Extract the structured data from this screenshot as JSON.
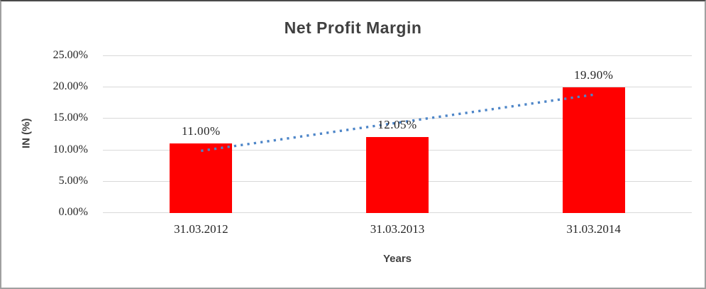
{
  "chart_data": {
    "type": "bar",
    "title": "Net Profit Margin",
    "categories": [
      "31.03.2012",
      "31.03.2013",
      "31.03.2014"
    ],
    "values": [
      11.0,
      12.05,
      19.9
    ],
    "value_labels": [
      "11.00%",
      "12.05%",
      "19.90%"
    ],
    "xlabel": "Years",
    "ylabel": "IN (%)",
    "ylim": [
      0,
      25
    ],
    "y_tick_labels": [
      "0.00%",
      "5.00%",
      "10.00%",
      "15.00%",
      "20.00%",
      "25.00%"
    ],
    "grid": "horizontal",
    "legend": "none",
    "bar_color": "#ff0000",
    "gridline_color": "#d9d9d9",
    "title_color": "#404040",
    "tick_label_color": "#262626",
    "trendline": {
      "type": "linear",
      "style": "dotted",
      "color": "#4e86c8"
    }
  }
}
